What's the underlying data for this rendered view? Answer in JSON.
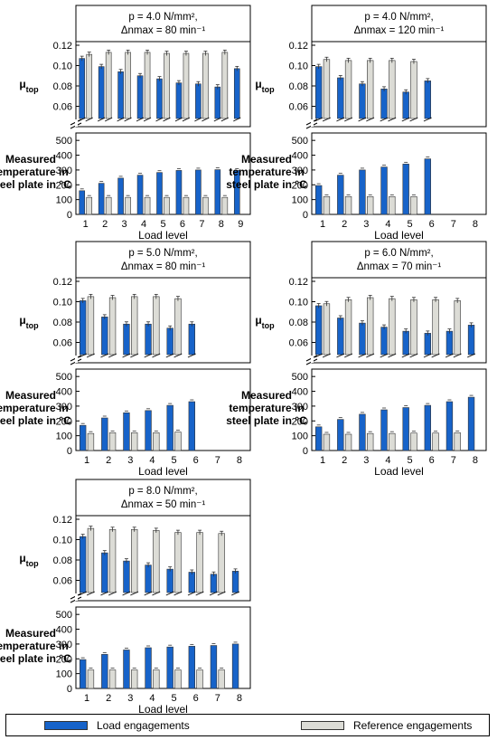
{
  "colors": {
    "load": "#1763c9",
    "reference": "#dcdcd6",
    "error_bar": "#333333"
  },
  "legend": {
    "load_label": "Load engagements",
    "reference_label": "Reference engagements"
  },
  "chart_data": [
    {
      "type": "bar",
      "title_lines": [
        "p = 4.0 N/mm², ",
        "Δnmax = 80 min⁻¹"
      ],
      "categories": [
        "1",
        "2",
        "3",
        "4",
        "5",
        "6",
        "7",
        "8",
        "9"
      ],
      "xlabel": "Load level",
      "mu": {
        "ylabel": "μtop",
        "ylim": [
          0.04,
          0.12
        ],
        "yticks": [
          "0.06",
          "0.08",
          "0.10",
          "0.12"
        ],
        "series": [
          {
            "name": "Load engagements",
            "values": [
              0.107,
              0.099,
              0.094,
              0.09,
              0.087,
              0.083,
              0.082,
              0.079,
              0.097
            ]
          },
          {
            "name": "Reference engagements",
            "values": [
              0.111,
              0.113,
              0.113,
              0.113,
              0.112,
              0.112,
              0.112,
              0.113,
              null
            ]
          }
        ]
      },
      "temp": {
        "ylabel": "Measured temperature in steel plate in °C",
        "ylim": [
          0,
          550
        ],
        "yticks": [
          "0",
          "100",
          "200",
          "300",
          "400",
          "500"
        ],
        "series": [
          {
            "name": "Load engagements",
            "values": [
              160,
              210,
              245,
              265,
              283,
              297,
              300,
              302,
              297
            ]
          },
          {
            "name": "Reference engagements",
            "values": [
              115,
              115,
              115,
              115,
              115,
              115,
              115,
              115,
              null
            ]
          }
        ]
      }
    },
    {
      "type": "bar",
      "title_lines": [
        "p = 4.0 N/mm², ",
        "Δnmax = 120 min⁻¹"
      ],
      "categories": [
        "1",
        "2",
        "3",
        "4",
        "5",
        "6",
        "7",
        "8"
      ],
      "xlabel": "Load level",
      "mu": {
        "ylabel": "μtop",
        "ylim": [
          0.04,
          0.12
        ],
        "yticks": [
          "0.06",
          "0.08",
          "0.10",
          "0.12"
        ],
        "series": [
          {
            "name": "Load engagements",
            "values": [
              0.099,
              0.088,
              0.082,
              0.077,
              0.074,
              0.085,
              null,
              null
            ]
          },
          {
            "name": "Reference engagements",
            "values": [
              0.106,
              0.105,
              0.105,
              0.105,
              0.104,
              null,
              null,
              null
            ]
          }
        ]
      },
      "temp": {
        "ylabel": "Measured temperature in steel plate in °C",
        "ylim": [
          0,
          550
        ],
        "yticks": [
          "0",
          "100",
          "200",
          "300",
          "400",
          "500"
        ],
        "series": [
          {
            "name": "Load engagements",
            "values": [
              195,
              265,
              300,
              320,
              340,
              375,
              null,
              null
            ]
          },
          {
            "name": "Reference engagements",
            "values": [
              120,
              120,
              120,
              120,
              120,
              null,
              null,
              null
            ]
          }
        ]
      }
    },
    {
      "type": "bar",
      "title_lines": [
        "p = 5.0 N/mm², ",
        "Δnmax = 80 min⁻¹"
      ],
      "categories": [
        "1",
        "2",
        "3",
        "4",
        "5",
        "6",
        "7",
        "8"
      ],
      "xlabel": "Load level",
      "mu": {
        "ylabel": "μtop",
        "ylim": [
          0.04,
          0.12
        ],
        "yticks": [
          "0.06",
          "0.08",
          "0.10",
          "0.12"
        ],
        "series": [
          {
            "name": "Load engagements",
            "values": [
              0.101,
              0.085,
              0.078,
              0.078,
              0.074,
              0.078,
              null,
              null
            ]
          },
          {
            "name": "Reference engagements",
            "values": [
              0.105,
              0.104,
              0.105,
              0.105,
              0.103,
              null,
              null,
              null
            ]
          }
        ]
      },
      "temp": {
        "ylabel": "Measured temperature in steel plate in °C",
        "ylim": [
          0,
          550
        ],
        "yticks": [
          "0",
          "100",
          "200",
          "300",
          "400",
          "500"
        ],
        "series": [
          {
            "name": "Load engagements",
            "values": [
              170,
              220,
              255,
              270,
              305,
              330,
              null,
              null
            ]
          },
          {
            "name": "Reference engagements",
            "values": [
              115,
              120,
              120,
              120,
              125,
              null,
              null,
              null
            ]
          }
        ]
      }
    },
    {
      "type": "bar",
      "title_lines": [
        "p = 6.0 N/mm², ",
        "Δnmax = 70 min⁻¹"
      ],
      "categories": [
        "1",
        "2",
        "3",
        "4",
        "5",
        "6",
        "7",
        "8"
      ],
      "xlabel": "Load level",
      "mu": {
        "ylabel": "μtop",
        "ylim": [
          0.04,
          0.12
        ],
        "yticks": [
          "0.06",
          "0.08",
          "0.10",
          "0.12"
        ],
        "series": [
          {
            "name": "Load engagements",
            "values": [
              0.096,
              0.084,
              0.079,
              0.075,
              0.071,
              0.069,
              0.071,
              0.077
            ]
          },
          {
            "name": "Reference engagements",
            "values": [
              0.098,
              0.102,
              0.104,
              0.103,
              0.102,
              0.102,
              0.101,
              null
            ]
          }
        ]
      },
      "temp": {
        "ylabel": "Measured temperature in steel plate in °C",
        "ylim": [
          0,
          550
        ],
        "yticks": [
          "0",
          "100",
          "200",
          "300",
          "400",
          "500"
        ],
        "series": [
          {
            "name": "Load engagements",
            "values": [
              160,
              210,
              245,
              275,
              290,
              305,
              330,
              360
            ]
          },
          {
            "name": "Reference engagements",
            "values": [
              110,
              110,
              115,
              115,
              118,
              118,
              120,
              null
            ]
          }
        ]
      }
    },
    {
      "type": "bar",
      "title_lines": [
        "p = 8.0 N/mm², ",
        "Δnmax = 50 min⁻¹"
      ],
      "categories": [
        "1",
        "2",
        "3",
        "4",
        "5",
        "6",
        "7",
        "8"
      ],
      "xlabel": "Load level",
      "mu": {
        "ylabel": "μtop",
        "ylim": [
          0.04,
          0.12
        ],
        "yticks": [
          "0.06",
          "0.08",
          "0.10",
          "0.12"
        ],
        "series": [
          {
            "name": "Load engagements",
            "values": [
              0.103,
              0.087,
              0.079,
              0.075,
              0.071,
              0.068,
              0.066,
              0.069
            ]
          },
          {
            "name": "Reference engagements",
            "values": [
              0.111,
              0.11,
              0.11,
              0.109,
              0.107,
              0.107,
              0.106,
              null
            ]
          }
        ]
      },
      "temp": {
        "ylabel": "Measured temperature in steel plate in °C",
        "ylim": [
          0,
          550
        ],
        "yticks": [
          "0",
          "100",
          "200",
          "300",
          "400",
          "500"
        ],
        "series": [
          {
            "name": "Load engagements",
            "values": [
              195,
              230,
              260,
              275,
              280,
              285,
              290,
              300
            ]
          },
          {
            "name": "Reference engagements",
            "values": [
              125,
              125,
              125,
              125,
              125,
              125,
              125,
              null
            ]
          }
        ]
      }
    }
  ]
}
